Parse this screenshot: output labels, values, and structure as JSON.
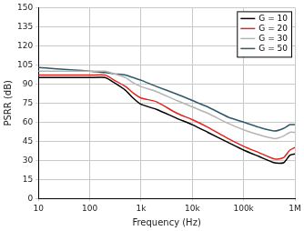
{
  "chart_data": {
    "type": "line",
    "x_label": "Frequency (Hz)",
    "y_label": "PSRR (dB)",
    "log": "x",
    "grid": true,
    "legend": "top right",
    "xlim": [
      10,
      1000000
    ],
    "xticks": [
      10,
      100,
      {
        "value": 1000,
        "label": "1k"
      },
      {
        "value": 10000,
        "label": "10k"
      },
      {
        "value": 100000,
        "label": "100k"
      },
      {
        "value": 1000000,
        "label": "1M"
      }
    ],
    "ylim": [
      0,
      150
    ],
    "yticks": [
      0,
      15,
      30,
      45,
      60,
      75,
      90,
      105,
      120,
      135,
      150
    ],
    "x": [
      10,
      20,
      50,
      100,
      200,
      300,
      500,
      700,
      1000,
      2000,
      5000,
      10000,
      20000,
      50000,
      100000,
      200000,
      400000,
      600000,
      800000,
      1000000
    ],
    "series": [
      {
        "name": "G = 10",
        "color": "#000000",
        "values": [
          95,
          95,
          95,
          95,
          95,
          91,
          85,
          79,
          74,
          70,
          63,
          58,
          52,
          44,
          38,
          33,
          28,
          28,
          34,
          35
        ]
      },
      {
        "name": "G = 20",
        "color": "#e0261e",
        "values": [
          97,
          97,
          97,
          97,
          97,
          93,
          88,
          83,
          79,
          76,
          67,
          62,
          56,
          47,
          41,
          36,
          31,
          32,
          38,
          40
        ]
      },
      {
        "name": "G = 30",
        "color": "#b4b4b4",
        "values": [
          100,
          100,
          100,
          100,
          100,
          98,
          95,
          91,
          88,
          84,
          77,
          72,
          67,
          59,
          54,
          50,
          47,
          49,
          52,
          52
        ]
      },
      {
        "name": "G = 50",
        "color": "#2f5868",
        "values": [
          103,
          102,
          101,
          100,
          99,
          98,
          97,
          95,
          93,
          88,
          82,
          77,
          72,
          64,
          60,
          56,
          53,
          55,
          58,
          58
        ]
      }
    ]
  }
}
